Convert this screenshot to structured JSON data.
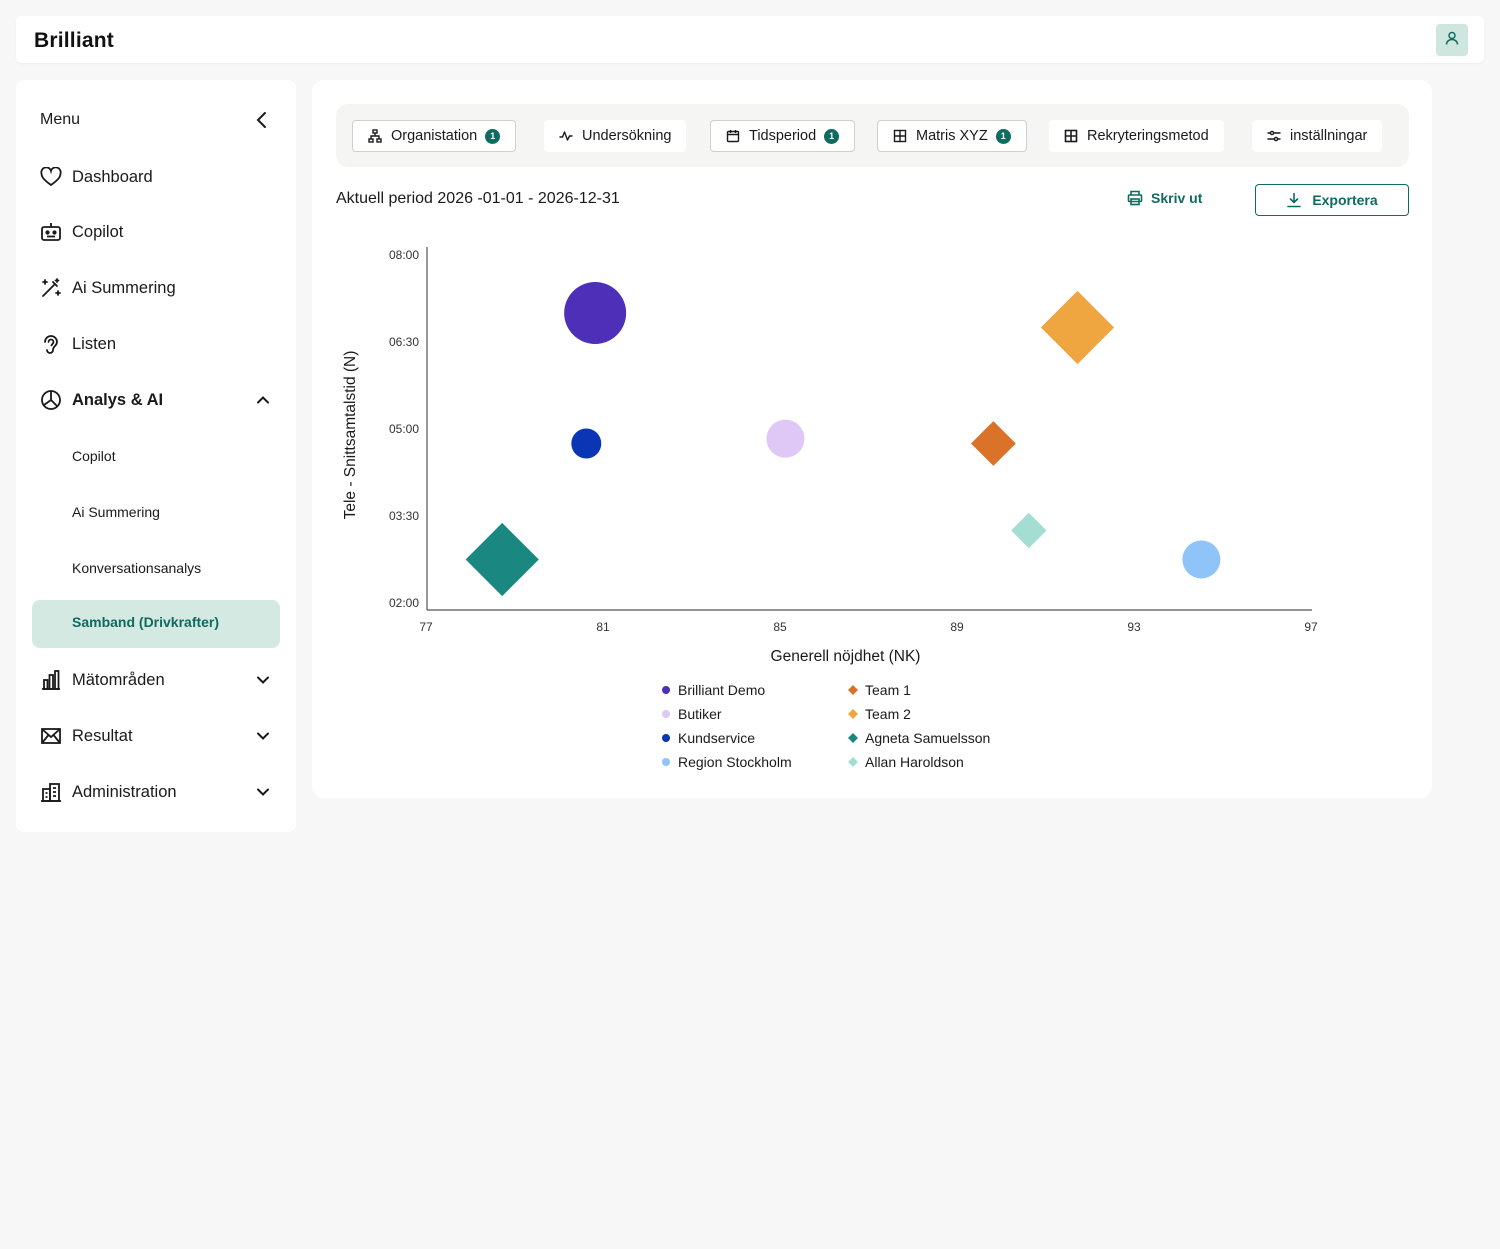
{
  "app": {
    "logo": "Brilliant"
  },
  "header": {
    "user_icon": "user-icon"
  },
  "sidebar": {
    "menu_title": "Menu",
    "items": [
      {
        "label": "Dashboard",
        "icon": "heart-icon"
      },
      {
        "label": "Copilot",
        "icon": "robot-icon"
      },
      {
        "label": "Ai Summering",
        "icon": "magic-wand-icon"
      },
      {
        "label": "Listen",
        "icon": "ear-icon"
      },
      {
        "label": "Analys & AI",
        "icon": "pie-chart-icon",
        "expanded": true
      },
      {
        "label": "Mätområden",
        "icon": "bar-chart-icon"
      },
      {
        "label": "Resultat",
        "icon": "envelope-icon"
      },
      {
        "label": "Administration",
        "icon": "building-icon"
      }
    ],
    "sub_items": [
      "Copilot",
      "Ai Summering",
      "Konversationsanalys",
      "Samband (Drivkrafter)"
    ],
    "active_sub_item": "Samband (Drivkrafter)"
  },
  "filters": {
    "chips": [
      {
        "label": "Organistation",
        "icon": "org-chart-icon",
        "badge": "1"
      },
      {
        "label": "Undersökning",
        "icon": "activity-icon",
        "badge": ""
      },
      {
        "label": "Tidsperiod",
        "icon": "calendar-icon",
        "badge": "1"
      },
      {
        "label": "Matris XYZ",
        "icon": "grid-icon",
        "badge": "1"
      },
      {
        "label": "Rekryteringsmetod",
        "icon": "grid-icon",
        "badge": ""
      },
      {
        "label": "inställningar",
        "icon": "sliders-icon",
        "badge": ""
      }
    ]
  },
  "toolbar": {
    "period_label": "Aktuell period 2026 -01-01 - 2026-12-31",
    "print_label": "Skriv ut",
    "export_label": "Exportera"
  },
  "chart_data": {
    "type": "scatter",
    "xlabel": "Generell nöjdhet (NK)",
    "ylabel": "Tele - Snittsamtalstid (N)",
    "xlim": [
      77,
      97
    ],
    "xticks": [
      "77",
      "81",
      "85",
      "89",
      "93",
      "97"
    ],
    "ylim": [
      "02:00",
      "08:00"
    ],
    "yticks": [
      "08:00",
      "06:30",
      "05:00",
      "03:30",
      "02:00"
    ],
    "grid": false,
    "legend_position": "bottom",
    "series": [
      {
        "name": "Brilliant Demo",
        "shape": "circle",
        "color": "#4e2fb7",
        "x": 80.8,
        "y": "07:00",
        "size": "large"
      },
      {
        "name": "Butiker",
        "shape": "circle",
        "color": "#e0c8f6",
        "x": 85.1,
        "y": "04:50",
        "size": "medium"
      },
      {
        "name": "Kundservice",
        "shape": "circle",
        "color": "#0a36b3",
        "x": 80.6,
        "y": "04:45",
        "size": "small"
      },
      {
        "name": "Region Stockholm",
        "shape": "circle",
        "color": "#8ec4f8",
        "x": 94.5,
        "y": "02:45",
        "size": "medium"
      },
      {
        "name": "Team 1",
        "shape": "diamond",
        "color": "#db722a",
        "x": 89.8,
        "y": "04:45",
        "size": "medium"
      },
      {
        "name": "Team 2",
        "shape": "diamond",
        "color": "#f0a640",
        "x": 91.7,
        "y": "06:45",
        "size": "large"
      },
      {
        "name": "Agneta Samuelsson",
        "shape": "diamond",
        "color": "#1a8880",
        "x": 78.7,
        "y": "02:45",
        "size": "large"
      },
      {
        "name": "Allan Haroldson",
        "shape": "diamond",
        "color": "#a4ddd2",
        "x": 90.6,
        "y": "03:15",
        "size": "small"
      }
    ]
  }
}
